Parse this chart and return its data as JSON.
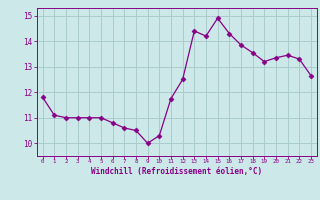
{
  "x": [
    0,
    1,
    2,
    3,
    4,
    5,
    6,
    7,
    8,
    9,
    10,
    11,
    12,
    13,
    14,
    15,
    16,
    17,
    18,
    19,
    20,
    21,
    22,
    23
  ],
  "y": [
    11.8,
    11.1,
    11.0,
    11.0,
    11.0,
    11.0,
    10.8,
    10.6,
    10.5,
    10.0,
    10.3,
    11.75,
    12.5,
    14.4,
    14.2,
    14.9,
    14.3,
    13.85,
    13.55,
    13.2,
    13.35,
    13.45,
    13.3,
    12.65
  ],
  "line_color": "#880088",
  "marker": "D",
  "marker_size": 2.5,
  "bg_color": "#cce8e8",
  "grid_color": "#aacccc",
  "xlabel": "Windchill (Refroidissement éolien,°C)",
  "xlabel_color": "#880088",
  "tick_color": "#880088",
  "ylim": [
    9.5,
    15.3
  ],
  "xlim": [
    -0.5,
    23.5
  ],
  "yticks": [
    10,
    11,
    12,
    13,
    14,
    15
  ],
  "xticks": [
    0,
    1,
    2,
    3,
    4,
    5,
    6,
    7,
    8,
    9,
    10,
    11,
    12,
    13,
    14,
    15,
    16,
    17,
    18,
    19,
    20,
    21,
    22,
    23
  ],
  "xtick_labels": [
    "0",
    "1",
    "2",
    "3",
    "4",
    "5",
    "6",
    "7",
    "8",
    "9",
    "10",
    "11",
    "12",
    "13",
    "14",
    "15",
    "16",
    "17",
    "18",
    "19",
    "20",
    "21",
    "22",
    "23"
  ]
}
